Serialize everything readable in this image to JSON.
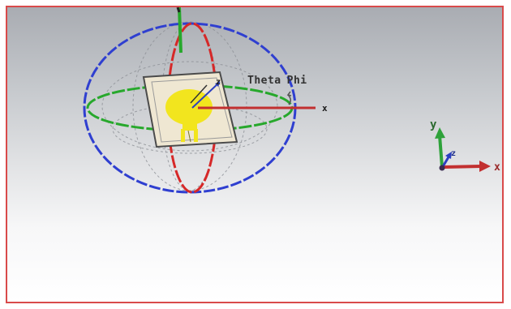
{
  "viewport": {
    "border_color": "#d94a4a"
  },
  "far_field_widget": {
    "theta_label": "Theta",
    "phi_label": "Phi",
    "x_label": "x",
    "z_label": "z",
    "circle_colors": {
      "theta": "#d62828",
      "phi": "#27a82c",
      "outline": "#2f3fd0"
    },
    "antenna_patch_color": "#f2e51e"
  },
  "axes_triad": {
    "x_label": "x",
    "y_label": "y",
    "z_label": "z",
    "colors": {
      "x": "#c23030",
      "y": "#2ea23a",
      "z": "#2b3fc0"
    }
  }
}
